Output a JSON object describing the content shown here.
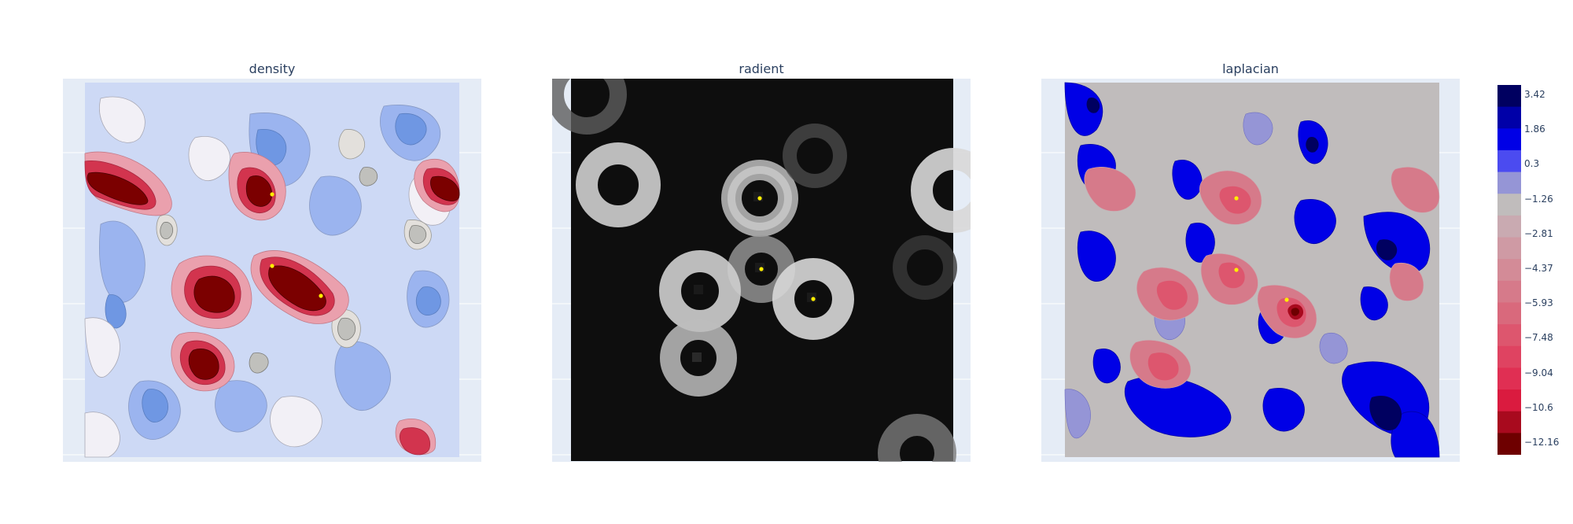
{
  "titles": {
    "density": "density",
    "radient": "radient",
    "laplacian": "laplacian"
  },
  "colorbar": {
    "ticks": [
      "3.42",
      "1.86",
      "0.3",
      "−1.26",
      "−2.81",
      "−4.37",
      "−5.93",
      "−7.48",
      "−9.04",
      "−10.6",
      "−12.16"
    ],
    "colors": [
      "#000060",
      "#0000a8",
      "#0000e6",
      "#4b4bf0",
      "#9595d6",
      "#c0bcbc",
      "#c9aab1",
      "#cf9aa4",
      "#d38b97",
      "#d67a8a",
      "#d9697c",
      "#dd566e",
      "#df4361",
      "#e02f53",
      "#da1b3f",
      "#a80a1e",
      "#6e0000"
    ]
  },
  "chart_data": [
    {
      "type": "heatmap",
      "title": "density",
      "mode": "filled-contour",
      "peaks_marked": 3,
      "grid": true,
      "colorscale": [
        "#7b0000",
        "#d2344e",
        "#eaa0ad",
        "#f2f0f6",
        "#e3e0dc",
        "#c0c0bc",
        "#8a8a86",
        "#cdd9f5",
        "#9bb4ef",
        "#6f97e3",
        "#dd3d6b"
      ]
    },
    {
      "type": "heatmap",
      "title": "radient",
      "mode": "grayscale-pixels",
      "peaks_marked": 3,
      "grid": true,
      "colorscale": [
        "#000000",
        "#ffffff"
      ]
    },
    {
      "type": "heatmap",
      "title": "laplacian",
      "mode": "filled-contour",
      "peaks_marked": 3,
      "grid": true,
      "zrange": [
        -12.16,
        3.42
      ],
      "colorbar_ticks": [
        3.42,
        1.86,
        0.3,
        -1.26,
        -2.81,
        -4.37,
        -5.93,
        -7.48,
        -9.04,
        -10.6,
        -12.16
      ]
    }
  ]
}
